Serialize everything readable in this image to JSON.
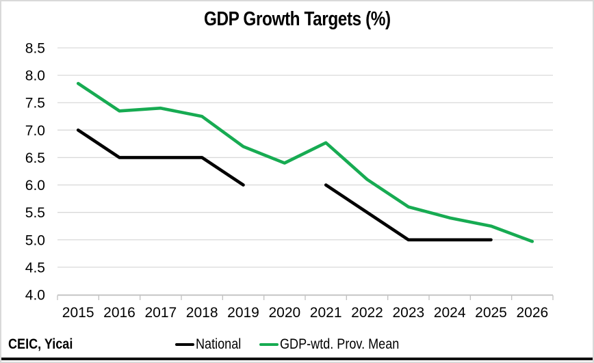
{
  "source": "CEIC, Yicai",
  "colors": {
    "national": "#000000",
    "provincial_mean": "#17ab52",
    "gridline": "#d9d9d9",
    "axis": "#bfbfbf",
    "text": "#000000",
    "frame_border": "#d9d9d9",
    "bottom_rule": "#111111"
  },
  "chart_data": {
    "type": "line",
    "title": "GDP Growth Targets (%)",
    "categories": [
      "2015",
      "2016",
      "2017",
      "2018",
      "2019",
      "2020",
      "2021",
      "2022",
      "2023",
      "2024",
      "2025",
      "2026"
    ],
    "series": [
      {
        "name": "National",
        "color": "#000000",
        "values": [
          7.0,
          6.5,
          6.5,
          6.5,
          6.0,
          null,
          6.0,
          5.5,
          5.0,
          5.0,
          5.0,
          null
        ]
      },
      {
        "name": "GDP-wtd. Prov. Mean",
        "color": "#17ab52",
        "values": [
          7.85,
          7.35,
          7.4,
          7.25,
          6.7,
          6.4,
          6.77,
          6.1,
          5.6,
          5.4,
          5.25,
          4.97
        ]
      }
    ],
    "xlabel": "",
    "ylabel": "",
    "ylim": [
      4.0,
      8.5
    ],
    "ytick_step": 0.5,
    "ytick_format_decimals": 1,
    "grid": true,
    "legend_position": "bottom"
  }
}
